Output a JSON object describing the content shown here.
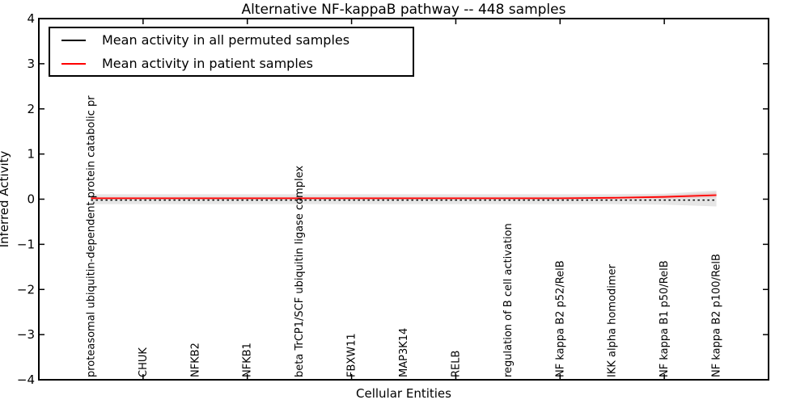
{
  "figure": {
    "background": "#ffffff",
    "frame_color": "#000000"
  },
  "chart_data": {
    "type": "line",
    "title": "Alternative NF-kappaB pathway -- 448 samples",
    "xlabel": "Cellular Entities",
    "ylabel": "Inferred Activity",
    "ylim": [
      -4,
      4
    ],
    "yticks": [
      -4,
      -3,
      -2,
      -1,
      0,
      1,
      2,
      3,
      4
    ],
    "xtick_indices": [
      1,
      3,
      5,
      7,
      9,
      11
    ],
    "grid": false,
    "legend_position": "upper left",
    "categories": [
      "proteasomal ubiquitin-dependent protein catabolic pr",
      "CHUK",
      "NFKB2",
      "NFKB1",
      "beta TrCP1/SCF ubiquitin ligase complex",
      "FBXW11",
      "MAP3K14",
      "RELB",
      "regulation of B cell activation",
      "NF kappa B2 p52/RelB",
      "IKK alpha homodimer",
      "NF kappa B1 p50/RelB",
      "NF kappa B2 p100/RelB"
    ],
    "series": [
      {
        "name": "Mean activity in all permuted samples",
        "color": "#000000",
        "style": "dashed",
        "values": [
          -0.02,
          -0.02,
          -0.02,
          -0.02,
          -0.02,
          -0.02,
          -0.02,
          -0.02,
          -0.02,
          -0.02,
          -0.02,
          -0.02,
          -0.02
        ]
      },
      {
        "name": "Mean activity in patient samples",
        "color": "#ff0000",
        "style": "solid",
        "values": [
          0.02,
          0.02,
          0.02,
          0.02,
          0.02,
          0.02,
          0.02,
          0.02,
          0.02,
          0.02,
          0.03,
          0.05,
          0.09
        ]
      }
    ],
    "bands": [
      {
        "name": "permuted-samples-band",
        "color": "#e6e6e6",
        "upper": [
          0.11,
          0.11,
          0.11,
          0.11,
          0.11,
          0.11,
          0.11,
          0.11,
          0.11,
          0.11,
          0.11,
          0.12,
          0.19
        ],
        "lower": [
          -0.11,
          -0.11,
          -0.11,
          -0.11,
          -0.11,
          -0.11,
          -0.11,
          -0.11,
          -0.11,
          -0.11,
          -0.11,
          -0.12,
          -0.16
        ]
      },
      {
        "name": "patient-samples-band",
        "color": "rgba(255,0,0,0.10)",
        "upper": [
          0.05,
          0.05,
          0.05,
          0.05,
          0.05,
          0.05,
          0.05,
          0.05,
          0.05,
          0.05,
          0.06,
          0.09,
          0.15
        ],
        "lower": [
          -0.01,
          -0.01,
          -0.01,
          -0.01,
          -0.01,
          -0.01,
          -0.01,
          -0.01,
          -0.01,
          -0.01,
          0.0,
          0.01,
          0.04
        ]
      }
    ]
  }
}
